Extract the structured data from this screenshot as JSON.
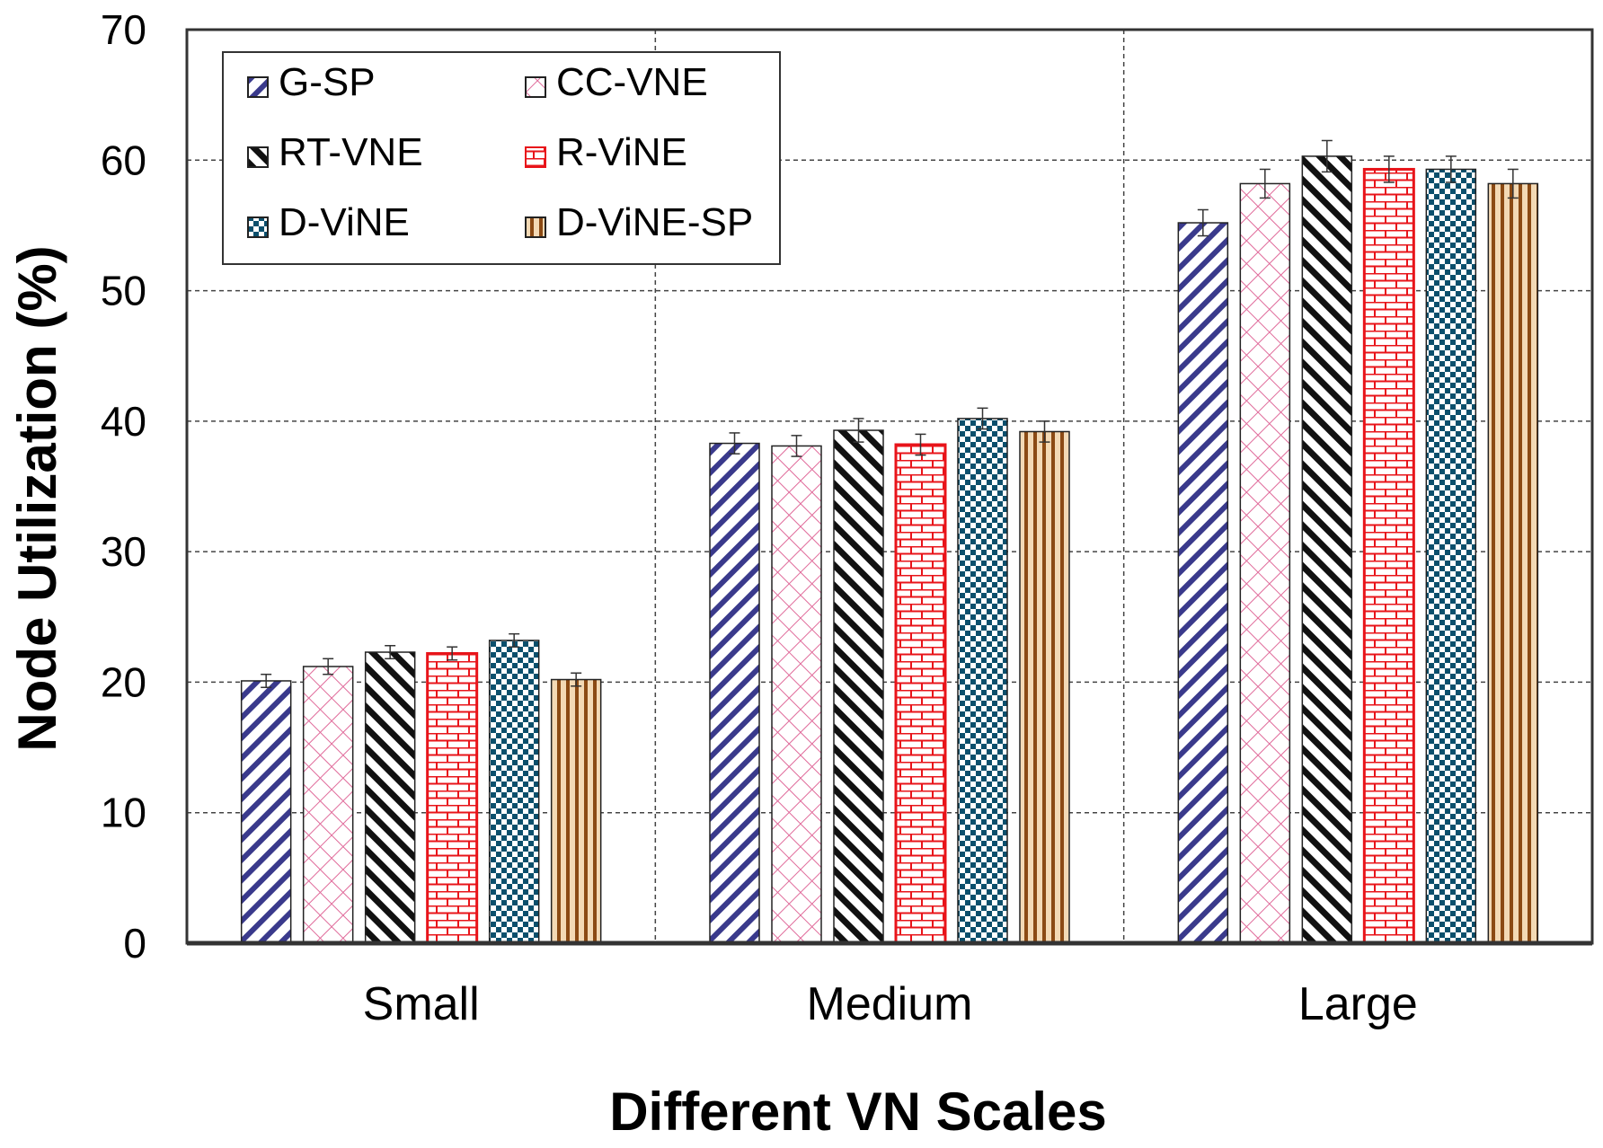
{
  "chart_data": {
    "type": "bar",
    "title": "",
    "xlabel": "Different VN Scales",
    "ylabel": "Node Utilization (%)",
    "ylim": [
      0,
      70
    ],
    "yticks": [
      0,
      10,
      20,
      30,
      40,
      50,
      60,
      70
    ],
    "grid": true,
    "legend_position": "top-left",
    "categories": [
      "Small",
      "Medium",
      "Large"
    ],
    "series": [
      {
        "name": "G-SP",
        "values": [
          20.1,
          38.3,
          55.2
        ],
        "errors": [
          0.5,
          0.8,
          1.0
        ],
        "color": "#3a3a8c",
        "pattern": "diag-up"
      },
      {
        "name": "CC-VNE",
        "values": [
          21.2,
          38.1,
          58.2
        ],
        "errors": [
          0.6,
          0.8,
          1.1
        ],
        "color": "#e06a9a",
        "pattern": "cross"
      },
      {
        "name": "RT-VNE",
        "values": [
          22.3,
          39.3,
          60.3
        ],
        "errors": [
          0.5,
          0.9,
          1.2
        ],
        "color": "#111111",
        "pattern": "diag-down"
      },
      {
        "name": "R-ViNE",
        "values": [
          22.2,
          38.2,
          59.3
        ],
        "errors": [
          0.5,
          0.8,
          1.0
        ],
        "color": "#e8141a",
        "pattern": "brick"
      },
      {
        "name": "D-ViNE",
        "values": [
          23.2,
          40.2,
          59.3
        ],
        "errors": [
          0.5,
          0.8,
          1.0
        ],
        "color": "#0b4f6c",
        "pattern": "checker"
      },
      {
        "name": "D-ViNE-SP",
        "values": [
          20.2,
          39.2,
          58.2
        ],
        "errors": [
          0.5,
          0.8,
          1.1
        ],
        "color": "#8b4a14",
        "pattern": "vertical"
      }
    ]
  }
}
